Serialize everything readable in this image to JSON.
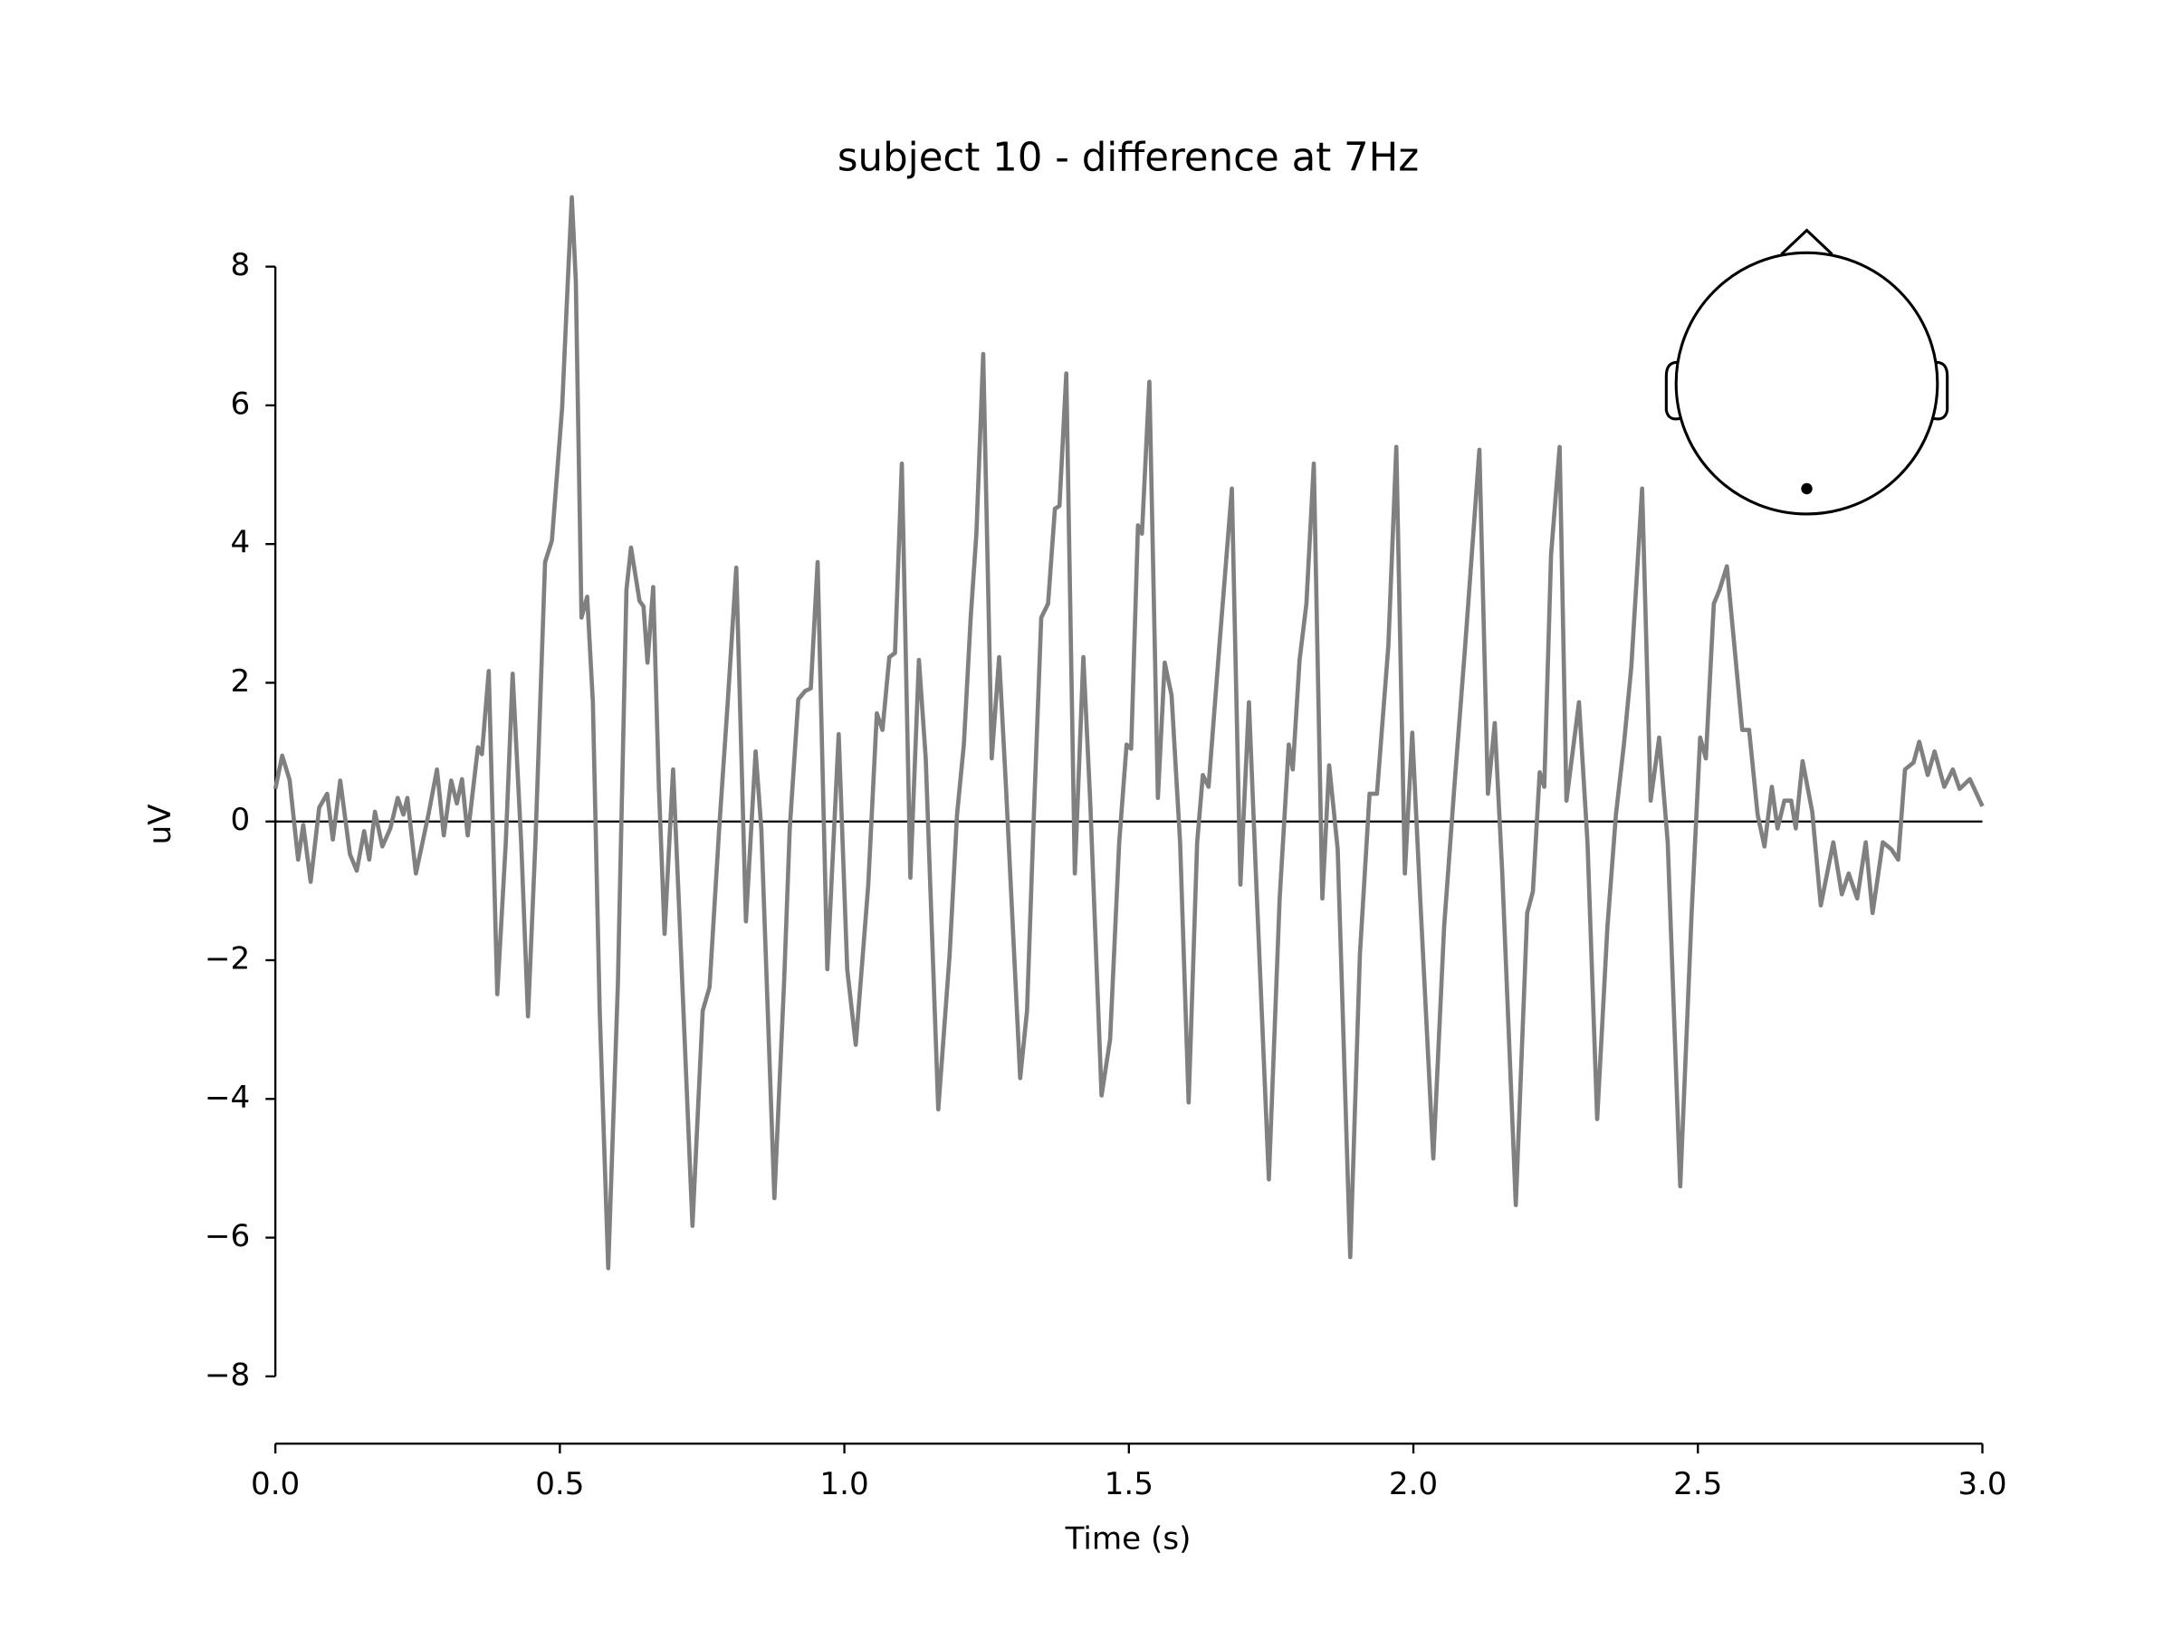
{
  "chart_data": {
    "type": "line",
    "title": "subject 10 - difference at 7Hz",
    "xlabel": "Time (s)",
    "ylabel": "uV",
    "x": [
      0,
      0.012,
      0.025,
      0.04,
      0.049,
      0.062,
      0.077,
      0.091,
      0.101,
      0.114,
      0.131,
      0.143,
      0.156,
      0.165,
      0.175,
      0.188,
      0.202,
      0.215,
      0.225,
      0.232,
      0.247,
      0.269,
      0.284,
      0.296,
      0.309,
      0.319,
      0.328,
      0.338,
      0.356,
      0.363,
      0.375,
      0.39,
      0.405,
      0.417,
      0.432,
      0.444,
      0.457,
      0.474,
      0.486,
      0.504,
      0.514,
      0.521,
      0.528,
      0.538,
      0.548,
      0.558,
      0.57,
      0.585,
      0.602,
      0.617,
      0.625,
      0.64,
      0.647,
      0.654,
      0.664,
      0.674,
      0.684,
      0.699,
      0.711,
      0.733,
      0.751,
      0.763,
      0.78,
      0.795,
      0.81,
      0.827,
      0.844,
      0.854,
      0.877,
      0.894,
      0.904,
      0.919,
      0.931,
      0.941,
      0.953,
      0.97,
      0.99,
      1.005,
      1.02,
      1.042,
      1.057,
      1.067,
      1.079,
      1.089,
      1.101,
      1.116,
      1.131,
      1.143,
      1.165,
      1.185,
      1.198,
      1.21,
      1.222,
      1.232,
      1.244,
      1.259,
      1.272,
      1.284,
      1.309,
      1.321,
      1.333,
      1.346,
      1.358,
      1.37,
      1.378,
      1.39,
      1.405,
      1.42,
      1.432,
      1.452,
      1.467,
      1.483,
      1.496,
      1.504,
      1.516,
      1.523,
      1.536,
      1.551,
      1.563,
      1.575,
      1.59,
      1.605,
      1.62,
      1.63,
      1.64,
      1.659,
      1.681,
      1.696,
      1.711,
      1.723,
      1.746,
      1.765,
      1.781,
      1.788,
      1.8,
      1.812,
      1.825,
      1.84,
      1.852,
      1.867,
      1.889,
      1.906,
      1.923,
      1.936,
      1.956,
      1.97,
      1.985,
      1.998,
      2.012,
      2.035,
      2.054,
      2.072,
      2.091,
      2.116,
      2.131,
      2.143,
      2.156,
      2.18,
      2.2,
      2.21,
      2.222,
      2.23,
      2.242,
      2.257,
      2.269,
      2.291,
      2.306,
      2.323,
      2.341,
      2.356,
      2.37,
      2.383,
      2.402,
      2.417,
      2.432,
      2.447,
      2.469,
      2.489,
      2.504,
      2.514,
      2.528,
      2.538,
      2.551,
      2.578,
      2.59,
      2.605,
      2.617,
      2.63,
      2.64,
      2.652,
      2.664,
      2.672,
      2.684,
      2.701,
      2.716,
      2.738,
      2.753,
      2.765,
      2.78,
      2.795,
      2.807,
      2.825,
      2.84,
      2.852,
      2.864,
      2.879,
      2.889,
      2.904,
      2.916,
      2.933,
      2.948,
      2.96,
      2.978,
      3.0
    ],
    "series": [
      {
        "color": "#808080",
        "values": [
          0.47,
          0.95,
          0.6,
          -0.55,
          -0.05,
          -0.87,
          0.2,
          0.4,
          -0.26,
          0.59,
          -0.47,
          -0.71,
          -0.14,
          -0.55,
          0.14,
          -0.36,
          -0.1,
          0.34,
          0.1,
          0.34,
          -0.75,
          0.1,
          0.75,
          -0.2,
          0.59,
          0.26,
          0.61,
          -0.2,
          1.07,
          0.97,
          2.17,
          -2.49,
          -0.3,
          2.13,
          -0.3,
          -2.81,
          -0.3,
          3.74,
          4.05,
          5.97,
          7.8,
          9.0,
          7.8,
          2.94,
          3.24,
          1.72,
          -2.73,
          -6.44,
          -2.33,
          3.34,
          3.95,
          3.18,
          3.1,
          2.29,
          3.38,
          0.5,
          -1.62,
          0.75,
          -1.52,
          -5.83,
          -2.73,
          -2.39,
          -0.1,
          1.72,
          3.66,
          -1.44,
          1.01,
          -0.1,
          -5.43,
          -2.33,
          -0.1,
          1.76,
          1.88,
          1.92,
          3.74,
          -2.13,
          1.26,
          -2.13,
          -3.22,
          -0.91,
          1.56,
          1.32,
          2.37,
          2.43,
          5.16,
          -0.81,
          2.33,
          0.91,
          -4.15,
          -1.92,
          0.1,
          1.11,
          2.94,
          4.15,
          6.74,
          0.91,
          2.37,
          0.5,
          -3.7,
          -2.73,
          0.1,
          2.94,
          3.14,
          4.51,
          4.55,
          6.46,
          -0.75,
          2.37,
          0.3,
          -3.95,
          -3.14,
          -0.3,
          1.11,
          1.05,
          4.27,
          4.15,
          6.34,
          0.34,
          2.29,
          1.82,
          -0.3,
          -4.05,
          -0.3,
          0.67,
          0.5,
          2.53,
          4.8,
          -0.91,
          1.72,
          -0.71,
          -5.16,
          -1.11,
          1.11,
          0.75,
          2.33,
          3.14,
          5.16,
          -1.11,
          0.81,
          -0.4,
          -6.28,
          -1.92,
          0.4,
          0.4,
          2.53,
          5.4,
          -0.75,
          1.28,
          -1.11,
          -4.86,
          -1.52,
          0.5,
          2.53,
          5.36,
          0.4,
          1.42,
          -0.71,
          -5.53,
          -1.32,
          -1.01,
          0.71,
          0.5,
          3.85,
          5.4,
          0.3,
          1.72,
          -0.3,
          -4.29,
          -1.52,
          0.1,
          1.11,
          2.23,
          4.8,
          0.3,
          1.21,
          -0.3,
          -5.26,
          -1.32,
          1.21,
          0.91,
          3.14,
          3.34,
          3.68,
          1.32,
          1.32,
          0.1,
          -0.36,
          0.5,
          -0.1,
          0.3,
          0.3,
          -0.1,
          0.87,
          0.14,
          -1.21,
          -0.3,
          -1.05,
          -0.75,
          -1.11,
          -0.3,
          -1.32,
          -0.3,
          -0.4,
          -0.55,
          0.75,
          0.85,
          1.15,
          0.67,
          1.01,
          0.5,
          0.75,
          0.47,
          0.61,
          0.22
        ]
      }
    ],
    "hline": 0,
    "xlim": [
      0,
      3
    ],
    "ylim": [
      -8.97,
      9.03
    ],
    "xticks": [
      {
        "value": 0,
        "label": "0.0"
      },
      {
        "value": 0.5,
        "label": "0.5"
      },
      {
        "value": 1,
        "label": "1.0"
      },
      {
        "value": 1.5,
        "label": "1.5"
      },
      {
        "value": 2,
        "label": "2.0"
      },
      {
        "value": 2.5,
        "label": "2.5"
      },
      {
        "value": 3,
        "label": "3.0"
      }
    ],
    "yticks": [
      {
        "value": -8,
        "label": "−8"
      },
      {
        "value": -6,
        "label": "−6"
      },
      {
        "value": -4,
        "label": "−4"
      },
      {
        "value": -2,
        "label": "−2"
      },
      0,
      2,
      4,
      6,
      8
    ]
  }
}
